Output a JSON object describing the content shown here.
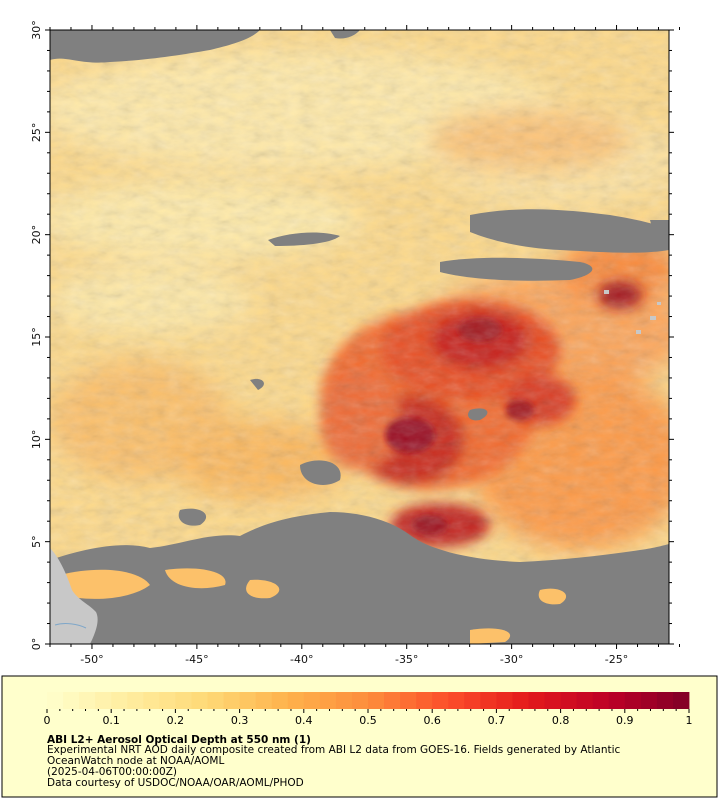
{
  "map": {
    "lat_ticks": [
      {
        "value": 0,
        "label": "0°"
      },
      {
        "value": 5,
        "label": "5°"
      },
      {
        "value": 10,
        "label": "10°"
      },
      {
        "value": 15,
        "label": "15°"
      },
      {
        "value": 20,
        "label": "20°"
      },
      {
        "value": 25,
        "label": "25°"
      },
      {
        "value": 30,
        "label": "30°"
      }
    ],
    "lon_ticks": [
      {
        "value": -50,
        "label": "-50°"
      },
      {
        "value": -45,
        "label": "-45°"
      },
      {
        "value": -40,
        "label": "-40°"
      },
      {
        "value": -35,
        "label": "-35°"
      },
      {
        "value": -30,
        "label": "-30°"
      },
      {
        "value": -25,
        "label": "-25°"
      }
    ],
    "lon_range": [
      -52,
      -22.5
    ],
    "lat_range": [
      0,
      30
    ],
    "missing_color": "#808080",
    "land_color": "#c8c8c8",
    "frame_color": "#ffffcc"
  },
  "colorbar": {
    "min": 0,
    "max": 1,
    "ticks": [
      {
        "value": 0,
        "label": "0"
      },
      {
        "value": 0.1,
        "label": "0.1"
      },
      {
        "value": 0.2,
        "label": "0.2"
      },
      {
        "value": 0.3,
        "label": "0.3"
      },
      {
        "value": 0.4,
        "label": "0.4"
      },
      {
        "value": 0.5,
        "label": "0.5"
      },
      {
        "value": 0.6,
        "label": "0.6"
      },
      {
        "value": 0.7,
        "label": "0.7"
      },
      {
        "value": 0.8,
        "label": "0.8"
      },
      {
        "value": 0.9,
        "label": "0.9"
      },
      {
        "value": 1,
        "label": "1"
      }
    ],
    "colors": [
      "#ffffcc",
      "#ffeda0",
      "#fed976",
      "#feb24c",
      "#fd8d3c",
      "#fc4e2a",
      "#e31a1c",
      "#bd0026",
      "#800026"
    ]
  },
  "caption": {
    "title": "ABI L2+ Aerosol Optical Depth at 550 nm (1)",
    "line1": "Experimental NRT AOD daily composite created from ABI L2 data from GOES-16. Fields generated by Atlantic",
    "line2": "OceanWatch node at NOAA/AOML",
    "line3": "(2025-04-06T00:00:00Z)",
    "line4": "Data courtesy of USDOC/NOAA/OAR/AOML/PHOD"
  }
}
